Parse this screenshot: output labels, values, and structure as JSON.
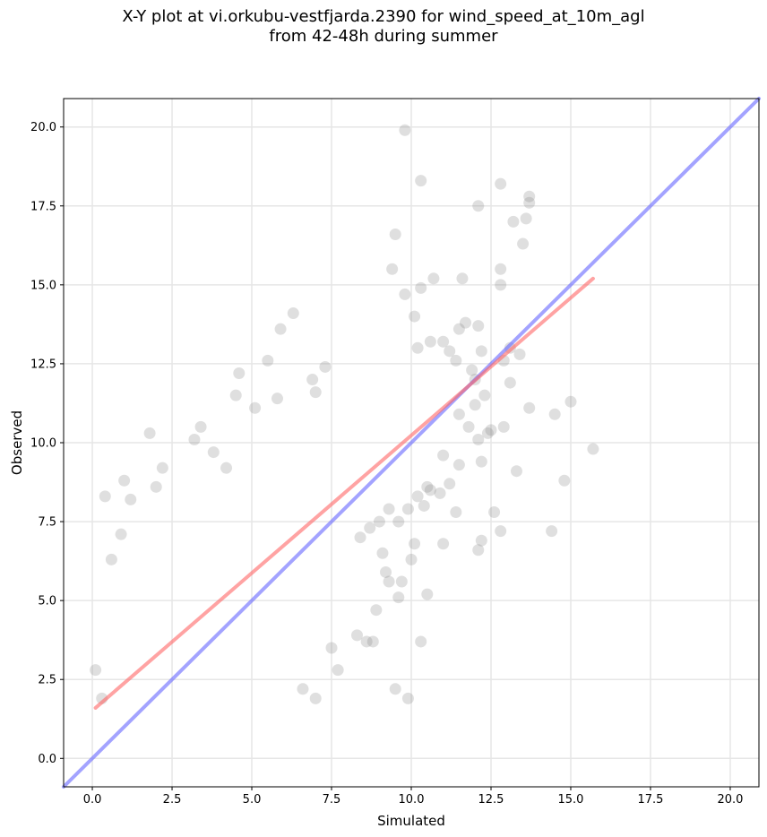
{
  "chart_data": {
    "type": "scatter",
    "title_line1": "X-Y plot at vi.orkubu-vestfjarda.2390 for wind_speed_at_10m_agl",
    "title_line2": "from 42-48h during summer",
    "xlabel": "Simulated",
    "ylabel": "Observed",
    "xlim": [
      -0.9,
      20.9
    ],
    "ylim": [
      -0.9,
      20.9
    ],
    "xticks": [
      "0.0",
      "2.5",
      "5.0",
      "7.5",
      "10.0",
      "12.5",
      "15.0",
      "17.5",
      "20.0"
    ],
    "yticks": [
      "0.0",
      "2.5",
      "5.0",
      "7.5",
      "10.0",
      "12.5",
      "15.0",
      "17.5",
      "20.0"
    ],
    "grid": true,
    "point_color": "#808080",
    "points": [
      [
        0.1,
        2.8
      ],
      [
        0.4,
        8.3
      ],
      [
        0.3,
        1.9
      ],
      [
        0.6,
        6.3
      ],
      [
        0.9,
        7.1
      ],
      [
        1.0,
        8.8
      ],
      [
        1.2,
        8.2
      ],
      [
        1.8,
        10.3
      ],
      [
        2.2,
        9.2
      ],
      [
        2.0,
        8.6
      ],
      [
        3.2,
        10.1
      ],
      [
        3.4,
        10.5
      ],
      [
        3.8,
        9.7
      ],
      [
        4.2,
        9.2
      ],
      [
        4.5,
        11.5
      ],
      [
        4.6,
        12.2
      ],
      [
        5.1,
        11.1
      ],
      [
        5.5,
        12.6
      ],
      [
        5.9,
        13.6
      ],
      [
        6.3,
        14.1
      ],
      [
        5.8,
        11.4
      ],
      [
        6.9,
        12.0
      ],
      [
        7.0,
        11.6
      ],
      [
        7.3,
        12.4
      ],
      [
        6.6,
        2.2
      ],
      [
        7.0,
        1.9
      ],
      [
        7.7,
        2.8
      ],
      [
        7.5,
        3.5
      ],
      [
        8.3,
        3.9
      ],
      [
        8.6,
        3.7
      ],
      [
        8.8,
        3.7
      ],
      [
        9.5,
        2.2
      ],
      [
        9.9,
        1.9
      ],
      [
        10.3,
        3.7
      ],
      [
        10.5,
        5.2
      ],
      [
        9.6,
        5.1
      ],
      [
        9.3,
        5.6
      ],
      [
        8.9,
        4.7
      ],
      [
        11.0,
        6.8
      ],
      [
        12.1,
        6.6
      ],
      [
        12.2,
        6.9
      ],
      [
        12.6,
        7.8
      ],
      [
        12.8,
        7.2
      ],
      [
        13.3,
        9.1
      ],
      [
        14.4,
        7.2
      ],
      [
        14.8,
        8.8
      ],
      [
        15.0,
        11.3
      ],
      [
        14.5,
        10.9
      ],
      [
        15.7,
        9.8
      ],
      [
        13.7,
        11.1
      ],
      [
        13.1,
        11.9
      ],
      [
        12.9,
        12.6
      ],
      [
        13.1,
        13.0
      ],
      [
        13.4,
        12.8
      ],
      [
        12.8,
        15.0
      ],
      [
        12.8,
        15.5
      ],
      [
        13.5,
        16.3
      ],
      [
        13.6,
        17.1
      ],
      [
        13.2,
        17.0
      ],
      [
        13.7,
        17.6
      ],
      [
        13.7,
        17.8
      ],
      [
        12.8,
        18.2
      ],
      [
        12.1,
        17.5
      ],
      [
        11.6,
        15.2
      ],
      [
        10.7,
        15.2
      ],
      [
        10.3,
        14.9
      ],
      [
        9.8,
        14.7
      ],
      [
        9.4,
        15.5
      ],
      [
        9.5,
        16.6
      ],
      [
        10.3,
        18.3
      ],
      [
        9.8,
        19.9
      ],
      [
        10.1,
        14.0
      ],
      [
        10.2,
        13.0
      ],
      [
        10.6,
        13.2
      ],
      [
        11.0,
        13.2
      ],
      [
        11.2,
        12.9
      ],
      [
        11.5,
        13.6
      ],
      [
        11.7,
        13.8
      ],
      [
        12.1,
        13.7
      ],
      [
        12.2,
        12.9
      ],
      [
        11.4,
        12.6
      ],
      [
        11.9,
        12.3
      ],
      [
        12.0,
        12.0
      ],
      [
        12.3,
        11.5
      ],
      [
        12.0,
        11.2
      ],
      [
        11.5,
        10.9
      ],
      [
        11.8,
        10.5
      ],
      [
        12.1,
        10.1
      ],
      [
        12.4,
        10.3
      ],
      [
        12.5,
        10.4
      ],
      [
        12.9,
        10.5
      ],
      [
        12.2,
        9.4
      ],
      [
        11.5,
        9.3
      ],
      [
        11.0,
        9.6
      ],
      [
        10.6,
        8.5
      ],
      [
        10.4,
        8.0
      ],
      [
        10.1,
        6.8
      ],
      [
        10.0,
        6.3
      ],
      [
        9.6,
        7.5
      ],
      [
        9.3,
        7.9
      ],
      [
        9.0,
        7.5
      ],
      [
        8.7,
        7.3
      ],
      [
        8.4,
        7.0
      ],
      [
        9.1,
        6.5
      ],
      [
        9.2,
        5.9
      ],
      [
        9.7,
        5.6
      ],
      [
        9.9,
        7.9
      ],
      [
        10.2,
        8.3
      ],
      [
        10.5,
        8.6
      ],
      [
        10.9,
        8.4
      ],
      [
        11.2,
        8.7
      ],
      [
        11.4,
        7.8
      ]
    ],
    "fit_line": {
      "color": "#ff6666",
      "x": [
        0.1,
        15.7
      ],
      "y": [
        1.6,
        15.2
      ]
    },
    "identity_line": {
      "color": "#6666ff",
      "x": [
        -0.9,
        20.9
      ],
      "y": [
        -0.9,
        20.9
      ]
    }
  }
}
